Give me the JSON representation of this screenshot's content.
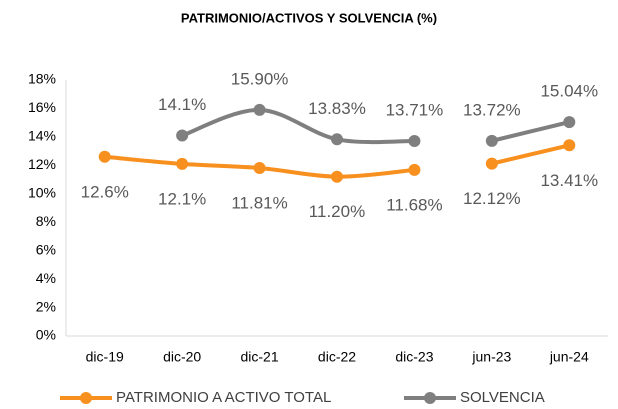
{
  "chart_data": {
    "type": "line",
    "title": "PATRIMONIO/ACTIVOS Y SOLVENCIA (%)",
    "categories": [
      "dic-19",
      "dic-20",
      "dic-21",
      "dic-22",
      "dic-23",
      "jun-23",
      "jun-24"
    ],
    "line_break_after": "dic-23",
    "series": [
      {
        "name": "PATRIMONIO A ACTIVO TOTAL",
        "color": "#f7901e",
        "values": [
          12.6,
          12.1,
          11.81,
          11.2,
          11.68,
          12.12,
          13.41
        ],
        "value_labels": [
          "12.6%",
          "12.1%",
          "11.81%",
          "11.20%",
          "11.68%",
          "12.12%",
          "13.41%"
        ]
      },
      {
        "name": "SOLVENCIA",
        "color": "#7f7f7f",
        "values": [
          null,
          14.1,
          15.9,
          13.83,
          13.71,
          13.72,
          15.04
        ],
        "value_labels": [
          null,
          "14.1%",
          "15.90%",
          "13.83%",
          "13.71%",
          "13.72%",
          "15.04%"
        ]
      }
    ],
    "ylim": [
      0,
      18
    ],
    "yticks": [
      {
        "value": 0,
        "label": "0%"
      },
      {
        "value": 2,
        "label": "2%"
      },
      {
        "value": 4,
        "label": "4%"
      },
      {
        "value": 6,
        "label": "6%"
      },
      {
        "value": 8,
        "label": "8%"
      },
      {
        "value": 10,
        "label": "10%"
      },
      {
        "value": 12,
        "label": "12%"
      },
      {
        "value": 14,
        "label": "14%"
      },
      {
        "value": 16,
        "label": "16%"
      },
      {
        "value": 18,
        "label": "18%"
      }
    ],
    "grid": false,
    "legend": "bottom"
  }
}
